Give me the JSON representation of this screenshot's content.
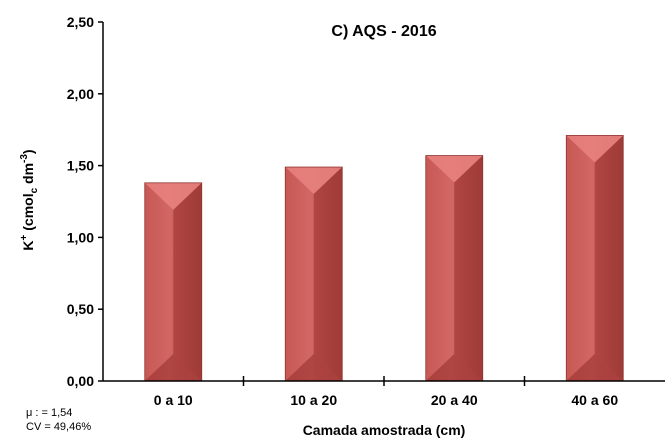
{
  "chart_data": {
    "type": "bar",
    "title": "C) AQS - 2016",
    "xlabel": "Camada amostrada (cm)",
    "ylabel": {
      "prefix": "K",
      "sup1": "+",
      "mid": " (cmol",
      "sub": "c",
      "mid2": " dm",
      "sup2": "-3",
      "suffix": ")"
    },
    "categories": [
      "0 a 10",
      "10 a 20",
      "20 a 40",
      "40 a 60"
    ],
    "values": [
      1.38,
      1.49,
      1.57,
      1.71
    ],
    "ylim": [
      0,
      2.5
    ],
    "yticks": [
      "0,00",
      "0,50",
      "1,00",
      "1,50",
      "2,00",
      "2,50"
    ],
    "ytick_values": [
      0,
      0.5,
      1,
      1.5,
      2,
      2.5
    ],
    "grid": false,
    "legend": "none",
    "bar_color": "#c0504d",
    "bar_color_light": "#e8837f",
    "bar_color_dark": "#9c3a37"
  },
  "stats": {
    "mean": "μ : = 1,54",
    "cv": "CV = 49,46%"
  }
}
